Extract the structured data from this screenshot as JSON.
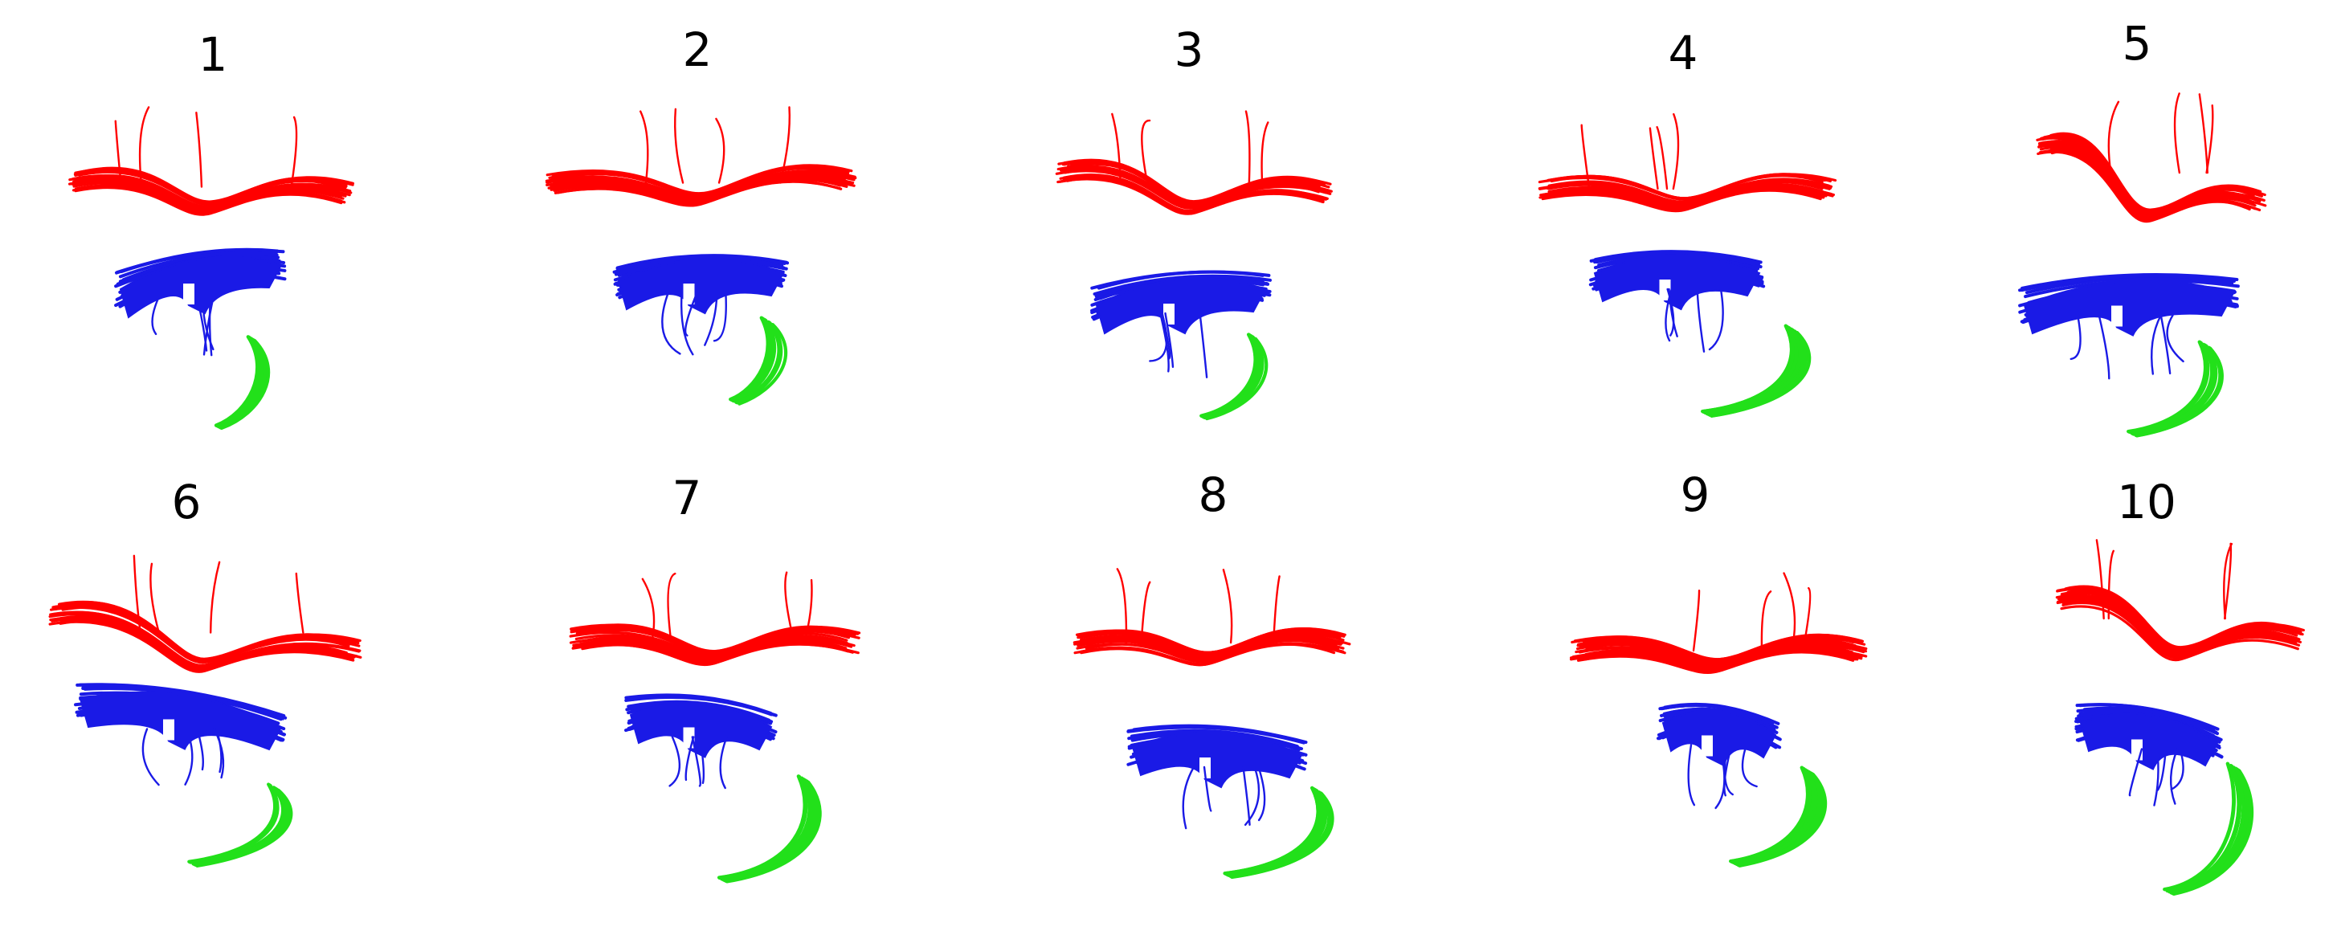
{
  "colors": {
    "red_bundle": "#ff0000",
    "blue_bundle": "#1a1ae6",
    "green_bundle": "#22e01a"
  },
  "panels": [
    {
      "label": "1"
    },
    {
      "label": "2"
    },
    {
      "label": "3"
    },
    {
      "label": "4"
    },
    {
      "label": "5"
    },
    {
      "label": "6"
    },
    {
      "label": "7"
    },
    {
      "label": "8"
    },
    {
      "label": "9"
    },
    {
      "label": "10"
    }
  ]
}
